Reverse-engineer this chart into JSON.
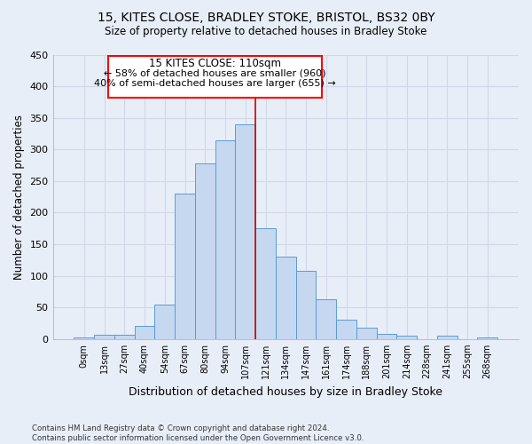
{
  "title": "15, KITES CLOSE, BRADLEY STOKE, BRISTOL, BS32 0BY",
  "subtitle": "Size of property relative to detached houses in Bradley Stoke",
  "xlabel": "Distribution of detached houses by size in Bradley Stoke",
  "ylabel": "Number of detached properties",
  "bar_color": "#c5d8f0",
  "bar_edge_color": "#5b9bd5",
  "background_color": "#e8eef8",
  "grid_color": "#d0d8e8",
  "annotation_title": "15 KITES CLOSE: 110sqm",
  "annotation_line1": "← 58% of detached houses are smaller (960)",
  "annotation_line2": "40% of semi-detached houses are larger (655) →",
  "vline_color": "#cc0000",
  "categories": [
    "0sqm",
    "13sqm",
    "27sqm",
    "40sqm",
    "54sqm",
    "67sqm",
    "80sqm",
    "94sqm",
    "107sqm",
    "121sqm",
    "134sqm",
    "147sqm",
    "161sqm",
    "174sqm",
    "188sqm",
    "201sqm",
    "214sqm",
    "228sqm",
    "241sqm",
    "255sqm",
    "268sqm"
  ],
  "bar_heights": [
    2,
    7,
    7,
    21,
    54,
    230,
    278,
    315,
    340,
    175,
    130,
    108,
    63,
    30,
    18,
    8,
    5,
    0,
    5,
    0,
    2
  ],
  "ylim": [
    0,
    450
  ],
  "yticks": [
    0,
    50,
    100,
    150,
    200,
    250,
    300,
    350,
    400,
    450
  ],
  "footer": "Contains HM Land Registry data © Crown copyright and database right 2024.\nContains public sector information licensed under the Open Government Licence v3.0.",
  "vline_bin_index": 8.5
}
